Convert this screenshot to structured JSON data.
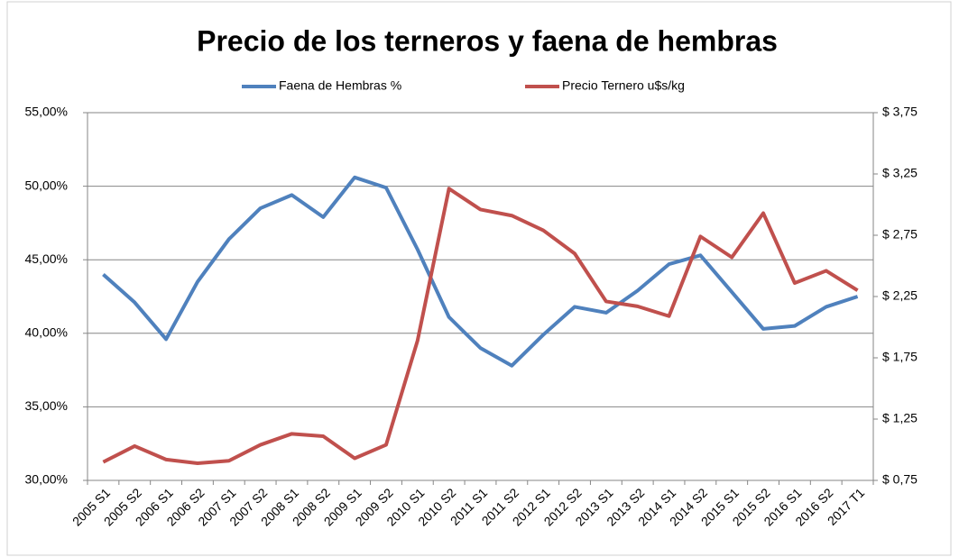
{
  "chart_data": {
    "type": "line",
    "title": "Precio de los terneros y faena de hembras",
    "categories": [
      "2005 S1",
      "2005 S2",
      "2006 S1",
      "2006 S2",
      "2007 S1",
      "2007 S2",
      "2008 S1",
      "2008 S2",
      "2009 S1",
      "2009 S2",
      "2010 S1",
      "2010 S2",
      "2011 S1",
      "2011 S2",
      "2012 S1",
      "2012 S2",
      "2013 S1",
      "2013 S2",
      "2014 S1",
      "2014 S2",
      "2015 S1",
      "2015 S2",
      "2016 S1",
      "2016 S2",
      "2017 T1"
    ],
    "series": [
      {
        "name": "Faena de Hembras %",
        "color": "#4f81bd",
        "values": [
          44.0,
          42.1,
          39.6,
          43.5,
          46.4,
          48.5,
          49.4,
          47.9,
          50.6,
          49.9,
          45.7,
          41.1,
          39.0,
          37.8,
          39.9,
          41.8,
          41.4,
          42.9,
          44.7,
          45.3,
          42.8,
          40.3,
          40.5,
          41.8,
          42.5
        ]
      },
      {
        "name": "Precio Ternero u$s/kg",
        "color": "#c0504d",
        "axis": "y2",
        "values": [
          0.9,
          1.03,
          0.92,
          0.89,
          0.91,
          1.04,
          1.13,
          1.11,
          0.93,
          1.04,
          1.89,
          3.13,
          2.96,
          2.91,
          2.79,
          2.6,
          2.21,
          2.17,
          2.09,
          2.74,
          2.57,
          2.93,
          2.36,
          2.46,
          2.3
        ]
      }
    ],
    "ylim": [
      30,
      55
    ],
    "yticks": [
      {
        "value": 30,
        "label": "30,00%"
      },
      {
        "value": 35,
        "label": "35,00%"
      },
      {
        "value": 40,
        "label": "40,00%"
      },
      {
        "value": 45,
        "label": "45,00%"
      },
      {
        "value": 50,
        "label": "50,00%"
      },
      {
        "value": 55,
        "label": "55,00%"
      }
    ],
    "y2lim": [
      0.75,
      3.75
    ],
    "y2ticks": [
      {
        "value": 0.75,
        "label": "$ 0,75"
      },
      {
        "value": 1.25,
        "label": "$ 1,25"
      },
      {
        "value": 1.75,
        "label": "$ 1,75"
      },
      {
        "value": 2.25,
        "label": "$ 2,25"
      },
      {
        "value": 2.75,
        "label": "$ 2,75"
      },
      {
        "value": 3.25,
        "label": "$ 3,25"
      },
      {
        "value": 3.75,
        "label": "$ 3,75"
      }
    ],
    "grid": true,
    "legend": "top"
  }
}
